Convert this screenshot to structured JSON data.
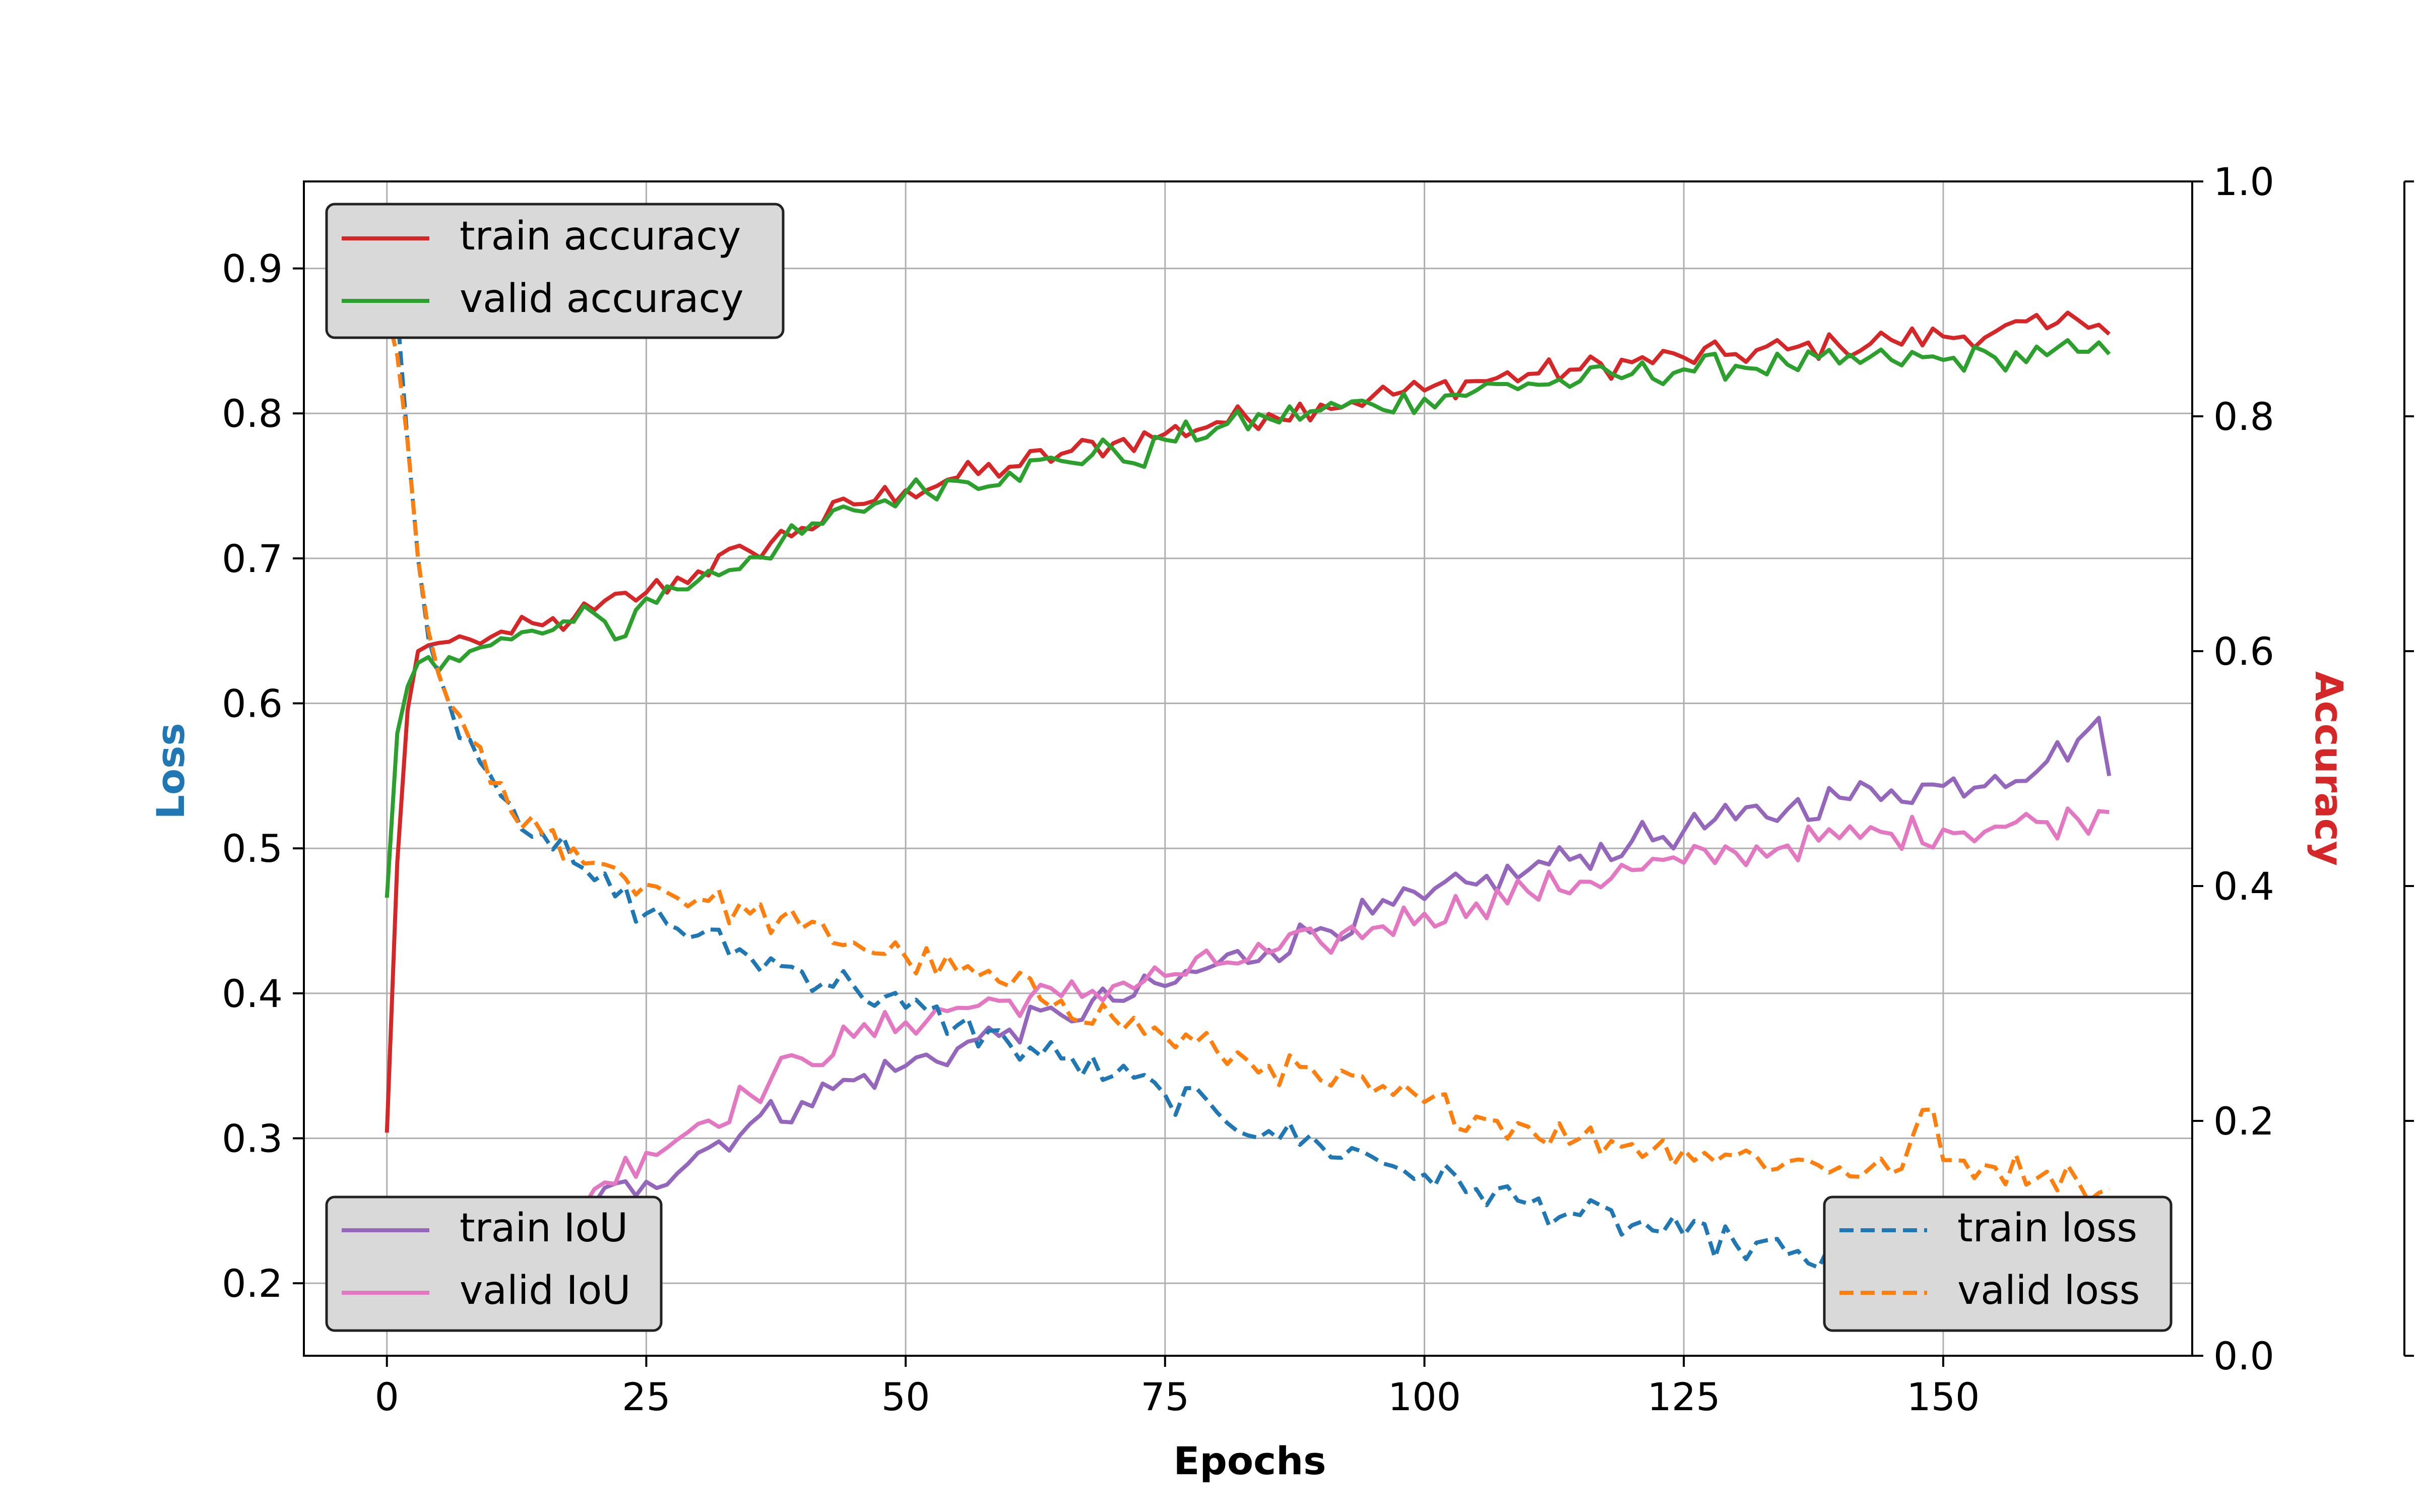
{
  "chart_data": {
    "type": "line",
    "xlabel": "Epochs",
    "ylabel_left": "Loss",
    "ylabel_right": "Accuracy",
    "colors": {
      "loss_label": "#1f77b4",
      "accuracy_label": "#d62728",
      "train_accuracy": "#d62728",
      "valid_accuracy": "#2ca02c",
      "train_iou": "#9467bd",
      "valid_iou": "#e377c2",
      "train_loss": "#1f77b4",
      "valid_loss": "#ff7f0e"
    },
    "grid": true,
    "x_range": [
      -8,
      174
    ],
    "x_ticks": [
      0,
      25,
      50,
      75,
      100,
      125,
      150
    ],
    "y_left_range": [
      0.15,
      0.96
    ],
    "y_left_ticks": [
      0.2,
      0.3,
      0.4,
      0.5,
      0.6,
      0.7,
      0.8,
      0.9
    ],
    "y_right_range": [
      0.0,
      1.0
    ],
    "y_right_ticks": [
      0.0,
      0.2,
      0.4,
      0.6,
      0.8,
      1.0
    ],
    "legends": {
      "accuracy": {
        "placement": "upper-left",
        "entries": [
          "train accuracy",
          "valid accuracy"
        ]
      },
      "iou": {
        "placement": "lower-left",
        "entries": [
          "train IoU",
          "valid IoU"
        ]
      },
      "loss": {
        "placement": "lower-right",
        "entries": [
          "train loss",
          "valid loss"
        ]
      }
    },
    "series": [
      {
        "name": "train accuracy",
        "axis": "right",
        "style": "solid",
        "points": [
          [
            0,
            0.19
          ],
          [
            1,
            0.42
          ],
          [
            2,
            0.55
          ],
          [
            3,
            0.6
          ],
          [
            4,
            0.605
          ],
          [
            5,
            0.607
          ],
          [
            6,
            0.608
          ],
          [
            8,
            0.61
          ],
          [
            10,
            0.612
          ],
          [
            12,
            0.615
          ],
          [
            15,
            0.622
          ],
          [
            18,
            0.628
          ],
          [
            20,
            0.635
          ],
          [
            25,
            0.65
          ],
          [
            30,
            0.668
          ],
          [
            35,
            0.685
          ],
          [
            40,
            0.705
          ],
          [
            45,
            0.725
          ],
          [
            50,
            0.737
          ],
          [
            55,
            0.748
          ],
          [
            60,
            0.757
          ],
          [
            65,
            0.768
          ],
          [
            70,
            0.777
          ],
          [
            75,
            0.785
          ],
          [
            80,
            0.795
          ],
          [
            85,
            0.802
          ],
          [
            90,
            0.81
          ],
          [
            95,
            0.817
          ],
          [
            100,
            0.822
          ],
          [
            105,
            0.83
          ],
          [
            110,
            0.836
          ],
          [
            115,
            0.84
          ],
          [
            120,
            0.846
          ],
          [
            125,
            0.85
          ],
          [
            130,
            0.853
          ],
          [
            135,
            0.857
          ],
          [
            140,
            0.86
          ],
          [
            145,
            0.865
          ],
          [
            150,
            0.868
          ],
          [
            155,
            0.872
          ],
          [
            160,
            0.875
          ],
          [
            163,
            0.882
          ],
          [
            165,
            0.878
          ],
          [
            166,
            0.87
          ]
        ]
      },
      {
        "name": "valid accuracy",
        "axis": "right",
        "style": "solid",
        "points": [
          [
            0,
            0.39
          ],
          [
            1,
            0.53
          ],
          [
            2,
            0.57
          ],
          [
            3,
            0.59
          ],
          [
            4,
            0.595
          ],
          [
            6,
            0.595
          ],
          [
            8,
            0.6
          ],
          [
            10,
            0.605
          ],
          [
            12,
            0.61
          ],
          [
            15,
            0.615
          ],
          [
            18,
            0.625
          ],
          [
            20,
            0.632
          ],
          [
            22,
            0.61
          ],
          [
            25,
            0.645
          ],
          [
            30,
            0.66
          ],
          [
            35,
            0.68
          ],
          [
            40,
            0.7
          ],
          [
            45,
            0.72
          ],
          [
            50,
            0.735
          ],
          [
            55,
            0.745
          ],
          [
            60,
            0.752
          ],
          [
            65,
            0.762
          ],
          [
            70,
            0.772
          ],
          [
            72,
            0.76
          ],
          [
            75,
            0.78
          ],
          [
            80,
            0.79
          ],
          [
            85,
            0.798
          ],
          [
            90,
            0.805
          ],
          [
            95,
            0.81
          ],
          [
            100,
            0.815
          ],
          [
            105,
            0.822
          ],
          [
            110,
            0.828
          ],
          [
            115,
            0.83
          ],
          [
            120,
            0.836
          ],
          [
            125,
            0.84
          ],
          [
            130,
            0.843
          ],
          [
            135,
            0.844
          ],
          [
            140,
            0.845
          ],
          [
            145,
            0.848
          ],
          [
            150,
            0.848
          ],
          [
            155,
            0.85
          ],
          [
            160,
            0.852
          ],
          [
            163,
            0.855
          ],
          [
            166,
            0.853
          ]
        ]
      },
      {
        "name": "train IoU",
        "axis": "left",
        "style": "solid",
        "points": [
          [
            0,
            0.21
          ],
          [
            2,
            0.215
          ],
          [
            5,
            0.215
          ],
          [
            8,
            0.21
          ],
          [
            10,
            0.21
          ],
          [
            12,
            0.22
          ],
          [
            15,
            0.235
          ],
          [
            18,
            0.245
          ],
          [
            20,
            0.255
          ],
          [
            25,
            0.27
          ],
          [
            30,
            0.29
          ],
          [
            35,
            0.31
          ],
          [
            40,
            0.325
          ],
          [
            45,
            0.34
          ],
          [
            50,
            0.35
          ],
          [
            55,
            0.362
          ],
          [
            60,
            0.375
          ],
          [
            65,
            0.385
          ],
          [
            70,
            0.395
          ],
          [
            75,
            0.405
          ],
          [
            80,
            0.42
          ],
          [
            85,
            0.43
          ],
          [
            90,
            0.445
          ],
          [
            95,
            0.455
          ],
          [
            100,
            0.465
          ],
          [
            105,
            0.475
          ],
          [
            110,
            0.485
          ],
          [
            115,
            0.495
          ],
          [
            120,
            0.505
          ],
          [
            125,
            0.512
          ],
          [
            130,
            0.52
          ],
          [
            135,
            0.527
          ],
          [
            140,
            0.535
          ],
          [
            145,
            0.54
          ],
          [
            150,
            0.543
          ],
          [
            155,
            0.55
          ],
          [
            160,
            0.56
          ],
          [
            163,
            0.575
          ],
          [
            165,
            0.59
          ],
          [
            166,
            0.55
          ]
        ]
      },
      {
        "name": "valid IoU",
        "axis": "left",
        "style": "solid",
        "points": [
          [
            0,
            0.22
          ],
          [
            2,
            0.222
          ],
          [
            5,
            0.218
          ],
          [
            8,
            0.22
          ],
          [
            10,
            0.228
          ],
          [
            12,
            0.235
          ],
          [
            15,
            0.245
          ],
          [
            18,
            0.255
          ],
          [
            20,
            0.265
          ],
          [
            25,
            0.29
          ],
          [
            30,
            0.31
          ],
          [
            35,
            0.33
          ],
          [
            40,
            0.355
          ],
          [
            45,
            0.37
          ],
          [
            50,
            0.38
          ],
          [
            55,
            0.39
          ],
          [
            60,
            0.395
          ],
          [
            65,
            0.398
          ],
          [
            70,
            0.405
          ],
          [
            75,
            0.412
          ],
          [
            80,
            0.42
          ],
          [
            85,
            0.428
          ],
          [
            90,
            0.435
          ],
          [
            95,
            0.445
          ],
          [
            100,
            0.455
          ],
          [
            105,
            0.462
          ],
          [
            110,
            0.47
          ],
          [
            115,
            0.477
          ],
          [
            120,
            0.485
          ],
          [
            125,
            0.49
          ],
          [
            130,
            0.497
          ],
          [
            135,
            0.502
          ],
          [
            140,
            0.507
          ],
          [
            145,
            0.51
          ],
          [
            150,
            0.513
          ],
          [
            155,
            0.515
          ],
          [
            160,
            0.518
          ],
          [
            163,
            0.52
          ],
          [
            166,
            0.525
          ]
        ]
      },
      {
        "name": "train loss",
        "axis": "left",
        "style": "dashed",
        "points": [
          [
            0,
            0.93
          ],
          [
            1,
            0.87
          ],
          [
            2,
            0.78
          ],
          [
            3,
            0.7
          ],
          [
            4,
            0.645
          ],
          [
            5,
            0.62
          ],
          [
            6,
            0.6
          ],
          [
            8,
            0.575
          ],
          [
            10,
            0.55
          ],
          [
            12,
            0.53
          ],
          [
            15,
            0.51
          ],
          [
            18,
            0.49
          ],
          [
            20,
            0.478
          ],
          [
            25,
            0.455
          ],
          [
            30,
            0.44
          ],
          [
            35,
            0.425
          ],
          [
            40,
            0.415
          ],
          [
            45,
            0.405
          ],
          [
            50,
            0.39
          ],
          [
            55,
            0.378
          ],
          [
            60,
            0.365
          ],
          [
            65,
            0.355
          ],
          [
            70,
            0.343
          ],
          [
            75,
            0.33
          ],
          [
            80,
            0.318
          ],
          [
            85,
            0.305
          ],
          [
            90,
            0.295
          ],
          [
            95,
            0.287
          ],
          [
            100,
            0.275
          ],
          [
            105,
            0.265
          ],
          [
            110,
            0.255
          ],
          [
            115,
            0.247
          ],
          [
            120,
            0.24
          ],
          [
            125,
            0.233
          ],
          [
            130,
            0.227
          ],
          [
            135,
            0.22
          ],
          [
            140,
            0.213
          ],
          [
            145,
            0.21
          ],
          [
            150,
            0.208
          ],
          [
            155,
            0.205
          ],
          [
            160,
            0.2
          ],
          [
            163,
            0.197
          ],
          [
            166,
            0.195
          ]
        ]
      },
      {
        "name": "valid loss",
        "axis": "left",
        "style": "dashed",
        "points": [
          [
            0,
            0.87
          ],
          [
            1,
            0.84
          ],
          [
            2,
            0.78
          ],
          [
            3,
            0.7
          ],
          [
            4,
            0.65
          ],
          [
            5,
            0.62
          ],
          [
            6,
            0.6
          ],
          [
            8,
            0.575
          ],
          [
            10,
            0.545
          ],
          [
            12,
            0.525
          ],
          [
            15,
            0.51
          ],
          [
            18,
            0.5
          ],
          [
            20,
            0.49
          ],
          [
            25,
            0.475
          ],
          [
            30,
            0.465
          ],
          [
            35,
            0.455
          ],
          [
            40,
            0.445
          ],
          [
            45,
            0.435
          ],
          [
            50,
            0.425
          ],
          [
            55,
            0.415
          ],
          [
            60,
            0.405
          ],
          [
            65,
            0.395
          ],
          [
            70,
            0.383
          ],
          [
            75,
            0.37
          ],
          [
            80,
            0.36
          ],
          [
            85,
            0.35
          ],
          [
            90,
            0.34
          ],
          [
            95,
            0.332
          ],
          [
            100,
            0.325
          ],
          [
            105,
            0.315
          ],
          [
            110,
            0.308
          ],
          [
            115,
            0.3
          ],
          [
            120,
            0.296
          ],
          [
            125,
            0.292
          ],
          [
            130,
            0.288
          ],
          [
            135,
            0.284
          ],
          [
            140,
            0.28
          ],
          [
            145,
            0.276
          ],
          [
            149,
            0.32
          ],
          [
            150,
            0.285
          ],
          [
            155,
            0.28
          ],
          [
            160,
            0.277
          ],
          [
            163,
            0.27
          ],
          [
            166,
            0.265
          ]
        ]
      }
    ]
  }
}
